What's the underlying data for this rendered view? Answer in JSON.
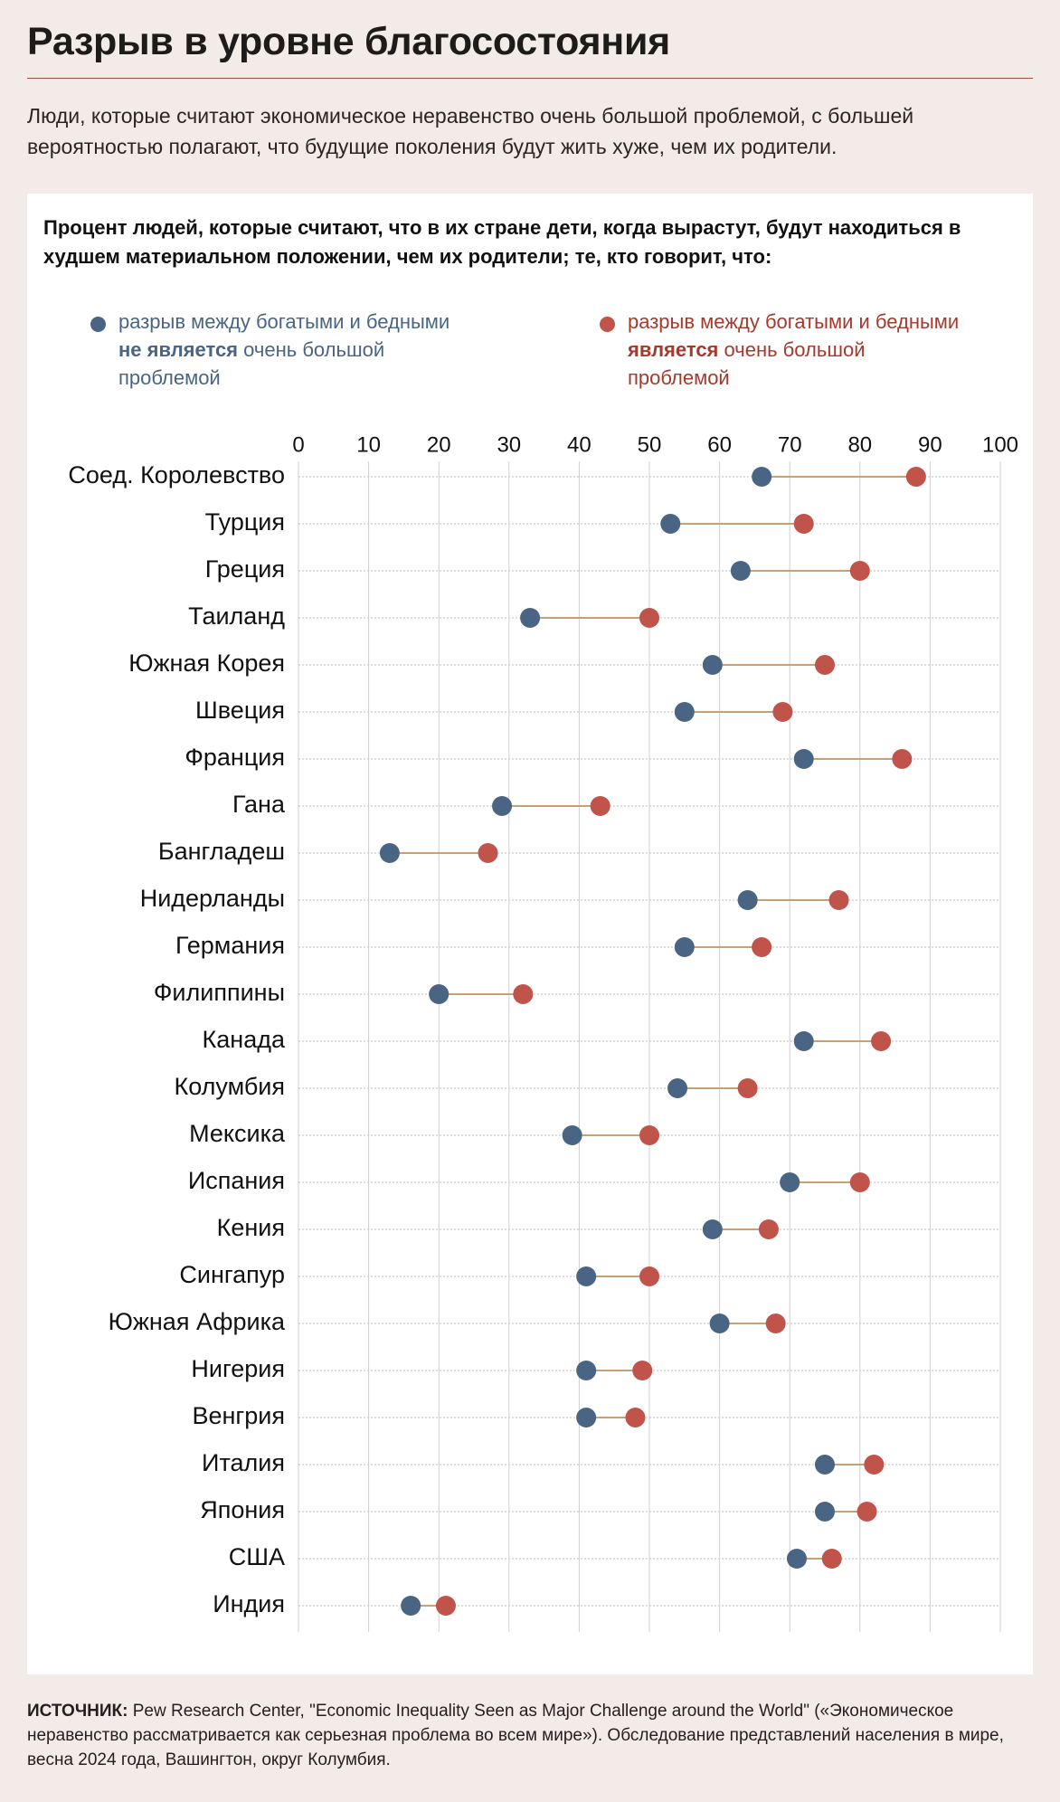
{
  "header": {
    "title": "Разрыв в уровне благосостояния",
    "subtitle": "Люди, которые считают экономическое неравенство очень большой проблемой, с большей вероятностью полагают, что будущие поколения будут жить хуже, чем их родители."
  },
  "legend": {
    "not_big": {
      "pre": "разрыв между богатыми и бедными ",
      "bold": "не является",
      "post": " очень большой проблемой"
    },
    "big": {
      "pre": "разрыв между богатыми и бедными ",
      "bold": "является",
      "post": " очень большой проблемой"
    }
  },
  "footer": {
    "source_label": "ИСТОЧНИК:",
    "source_text": " Pew Research Center, \"Economic Inequality Seen as Major Challenge around the World\" («Экономическое неравенство рассматривается как серьезная проблема во всем мире»). Обследование представлений населения в мире, весна 2024 года, Вашингтон, округ Колумбия."
  },
  "colors": {
    "background": "#f3ebe7",
    "panel": "#ffffff",
    "not_big_problem": "#4a6583",
    "big_problem": "#c0534a",
    "connector": "#c9a071",
    "grid": "#cfcfcf"
  },
  "chart_data": {
    "type": "dumbbell",
    "title": "Процент людей, которые считают, что в их стране дети, когда вырастут, будут находиться в худшем материальном положении, чем их родители; те, кто говорит, что:",
    "xlim": [
      0,
      100
    ],
    "x_ticks": [
      0,
      10,
      20,
      30,
      40,
      50,
      60,
      70,
      80,
      90,
      100
    ],
    "grid": true,
    "legend_position": "top",
    "categories": [
      "Соед. Королевство",
      "Турция",
      "Греция",
      "Таиланд",
      "Южная Корея",
      "Швеция",
      "Франция",
      "Гана",
      "Бангладеш",
      "Нидерланды",
      "Германия",
      "Филиппины",
      "Канада",
      "Колумбия",
      "Мексика",
      "Испания",
      "Кения",
      "Сингапур",
      "Южная Африка",
      "Нигерия",
      "Венгрия",
      "Италия",
      "Япония",
      "США",
      "Индия"
    ],
    "series": [
      {
        "name": "разрыв между богатыми и бедными не является очень большой проблемой",
        "values": [
          66,
          53,
          63,
          33,
          59,
          55,
          72,
          29,
          13,
          64,
          55,
          20,
          72,
          54,
          39,
          70,
          59,
          41,
          60,
          41,
          41,
          75,
          75,
          71,
          16
        ]
      },
      {
        "name": "разрыв между богатыми и бедными является очень большой проблемой",
        "values": [
          88,
          72,
          80,
          50,
          75,
          69,
          86,
          43,
          27,
          77,
          66,
          32,
          83,
          64,
          50,
          80,
          67,
          50,
          68,
          49,
          48,
          82,
          81,
          76,
          21
        ]
      }
    ]
  }
}
